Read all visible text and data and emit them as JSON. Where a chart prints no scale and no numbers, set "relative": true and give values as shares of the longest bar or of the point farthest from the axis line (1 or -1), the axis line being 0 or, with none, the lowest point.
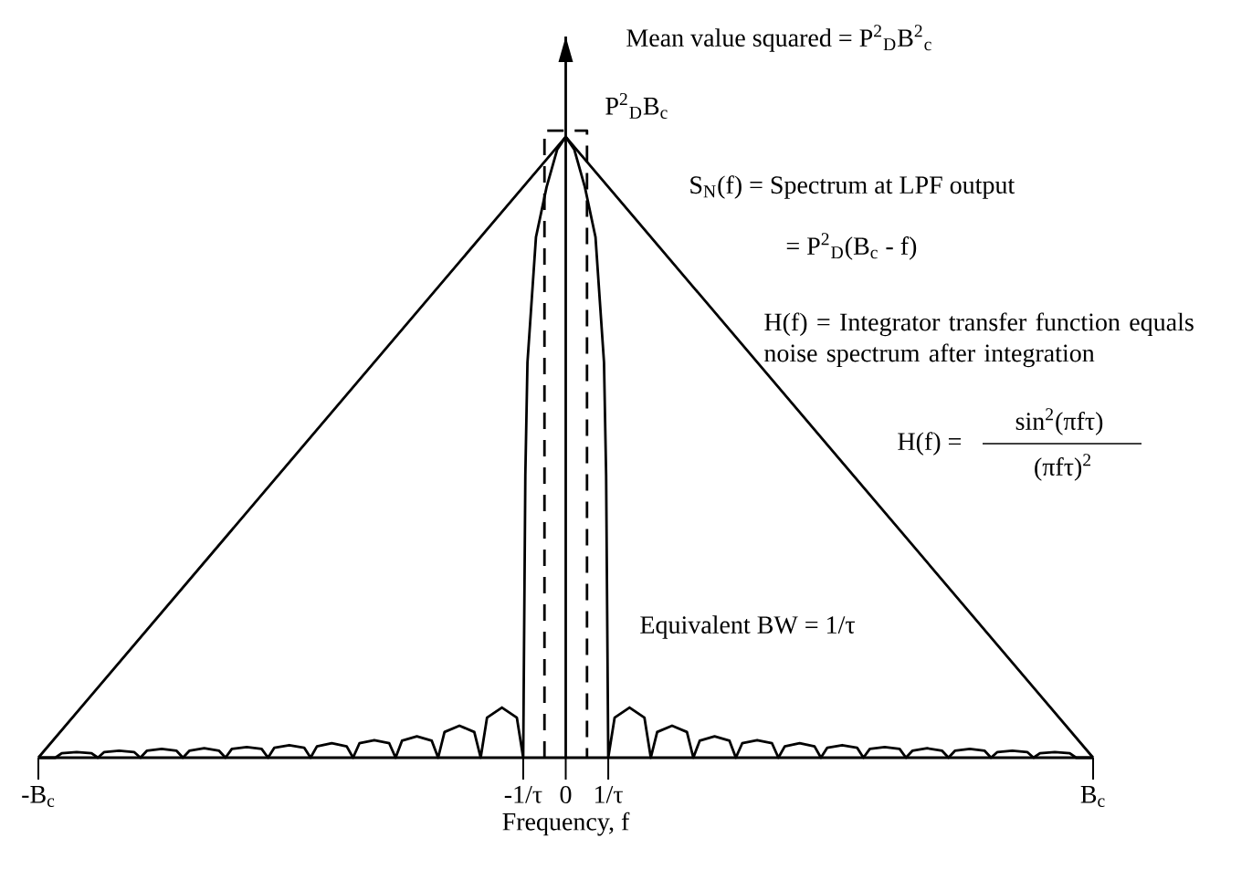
{
  "chart_data": {
    "type": "line",
    "relative": true,
    "xlabel": "Frequency, f",
    "xlim": [
      -12.4,
      12.4
    ],
    "xticks": [
      {
        "value": -12.4,
        "label": "-B$_{c}$"
      },
      {
        "value": -1,
        "label": "-1/τ"
      },
      0,
      {
        "value": 1,
        "label": "1/τ"
      },
      {
        "value": 12.4,
        "label": "B$_{c}$"
      }
    ],
    "series": [
      {
        "color": "#000000",
        "x": [
          -12.4,
          0,
          12.4
        ],
        "values": [
          0,
          0.99,
          0
        ]
      },
      {
        "color": "#000000",
        "x": [
          -12.4,
          -12,
          -11.85,
          -11.5,
          -11.15,
          -11,
          -10.85,
          -10.5,
          -10.15,
          -10,
          -9.85,
          -9.5,
          -9.15,
          -9,
          -8.85,
          -8.5,
          -8.15,
          -8,
          -7.85,
          -7.5,
          -7.15,
          -7,
          -6.85,
          -6.5,
          -6.15,
          -6,
          -5.85,
          -5.5,
          -5.15,
          -5,
          -4.85,
          -4.5,
          -4.15,
          -4,
          -3.85,
          -3.5,
          -3.15,
          -3,
          -2.85,
          -2.5,
          -2.15,
          -2,
          -1.85,
          -1.5,
          -1.15,
          -1,
          -0.95,
          -0.9,
          -0.7,
          -0.45,
          -0.2,
          0,
          0.2,
          0.45,
          0.7,
          0.9,
          0.95,
          1,
          1.15,
          1.5,
          1.85,
          2,
          2.15,
          2.5,
          2.85,
          3,
          3.15,
          3.5,
          3.85,
          4,
          4.15,
          4.5,
          4.85,
          5,
          5.15,
          5.5,
          5.85,
          6,
          6.15,
          6.5,
          6.85,
          7,
          7.15,
          7.5,
          7.85,
          8,
          8.15,
          8.5,
          8.85,
          9,
          9.15,
          9.5,
          9.85,
          10,
          10.15,
          10.5,
          10.85,
          11,
          11.15,
          11.5,
          11.85,
          12,
          12.4
        ],
        "values": [
          0,
          0,
          0.007,
          0.009,
          0.007,
          0,
          0.009,
          0.011,
          0.009,
          0,
          0.011,
          0.014,
          0.011,
          0,
          0.011,
          0.015,
          0.011,
          0,
          0.014,
          0.017,
          0.014,
          0,
          0.016,
          0.02,
          0.016,
          0,
          0.018,
          0.023,
          0.018,
          0,
          0.023,
          0.028,
          0.023,
          0,
          0.027,
          0.034,
          0.027,
          0,
          0.041,
          0.051,
          0.041,
          0,
          0.064,
          0.08,
          0.064,
          0,
          0.45,
          0.63,
          0.83,
          0.91,
          0.97,
          0.99,
          0.97,
          0.91,
          0.83,
          0.63,
          0.45,
          0,
          0.064,
          0.08,
          0.064,
          0,
          0.041,
          0.051,
          0.041,
          0,
          0.027,
          0.034,
          0.027,
          0,
          0.023,
          0.028,
          0.023,
          0,
          0.018,
          0.023,
          0.018,
          0,
          0.016,
          0.02,
          0.016,
          0,
          0.014,
          0.017,
          0.014,
          0,
          0.011,
          0.015,
          0.011,
          0,
          0.011,
          0.014,
          0.011,
          0,
          0.009,
          0.011,
          0.009,
          0,
          0.007,
          0.009,
          0.007,
          0,
          0
        ]
      },
      {
        "line_style": "dashed",
        "color": "#000000",
        "x": [
          -0.5,
          -0.5,
          0.5,
          0.5
        ],
        "values": [
          0,
          1,
          1,
          0
        ]
      }
    ],
    "ref_lines": [
      {
        "axis": "x",
        "value": 0,
        "color": "#000000"
      }
    ],
    "annotations": [
      "Mean value squared = P$^{2}$$_{D}$B$^{2}$$_{c}$",
      "P$^{2}$$_{D}$B$_{c}$",
      "S$_{N}$(f) = Spectrum at LPF output",
      "= P$^{2}$$_{D}$(B$_{c}$ - f)",
      "H(f) = Integrator transfer function equals noise spectrum after integration",
      "H(f) =",
      "sin$^{2}$(πfτ)",
      "(πfτ)$^{2}$",
      "Equivalent BW = 1/τ"
    ]
  }
}
